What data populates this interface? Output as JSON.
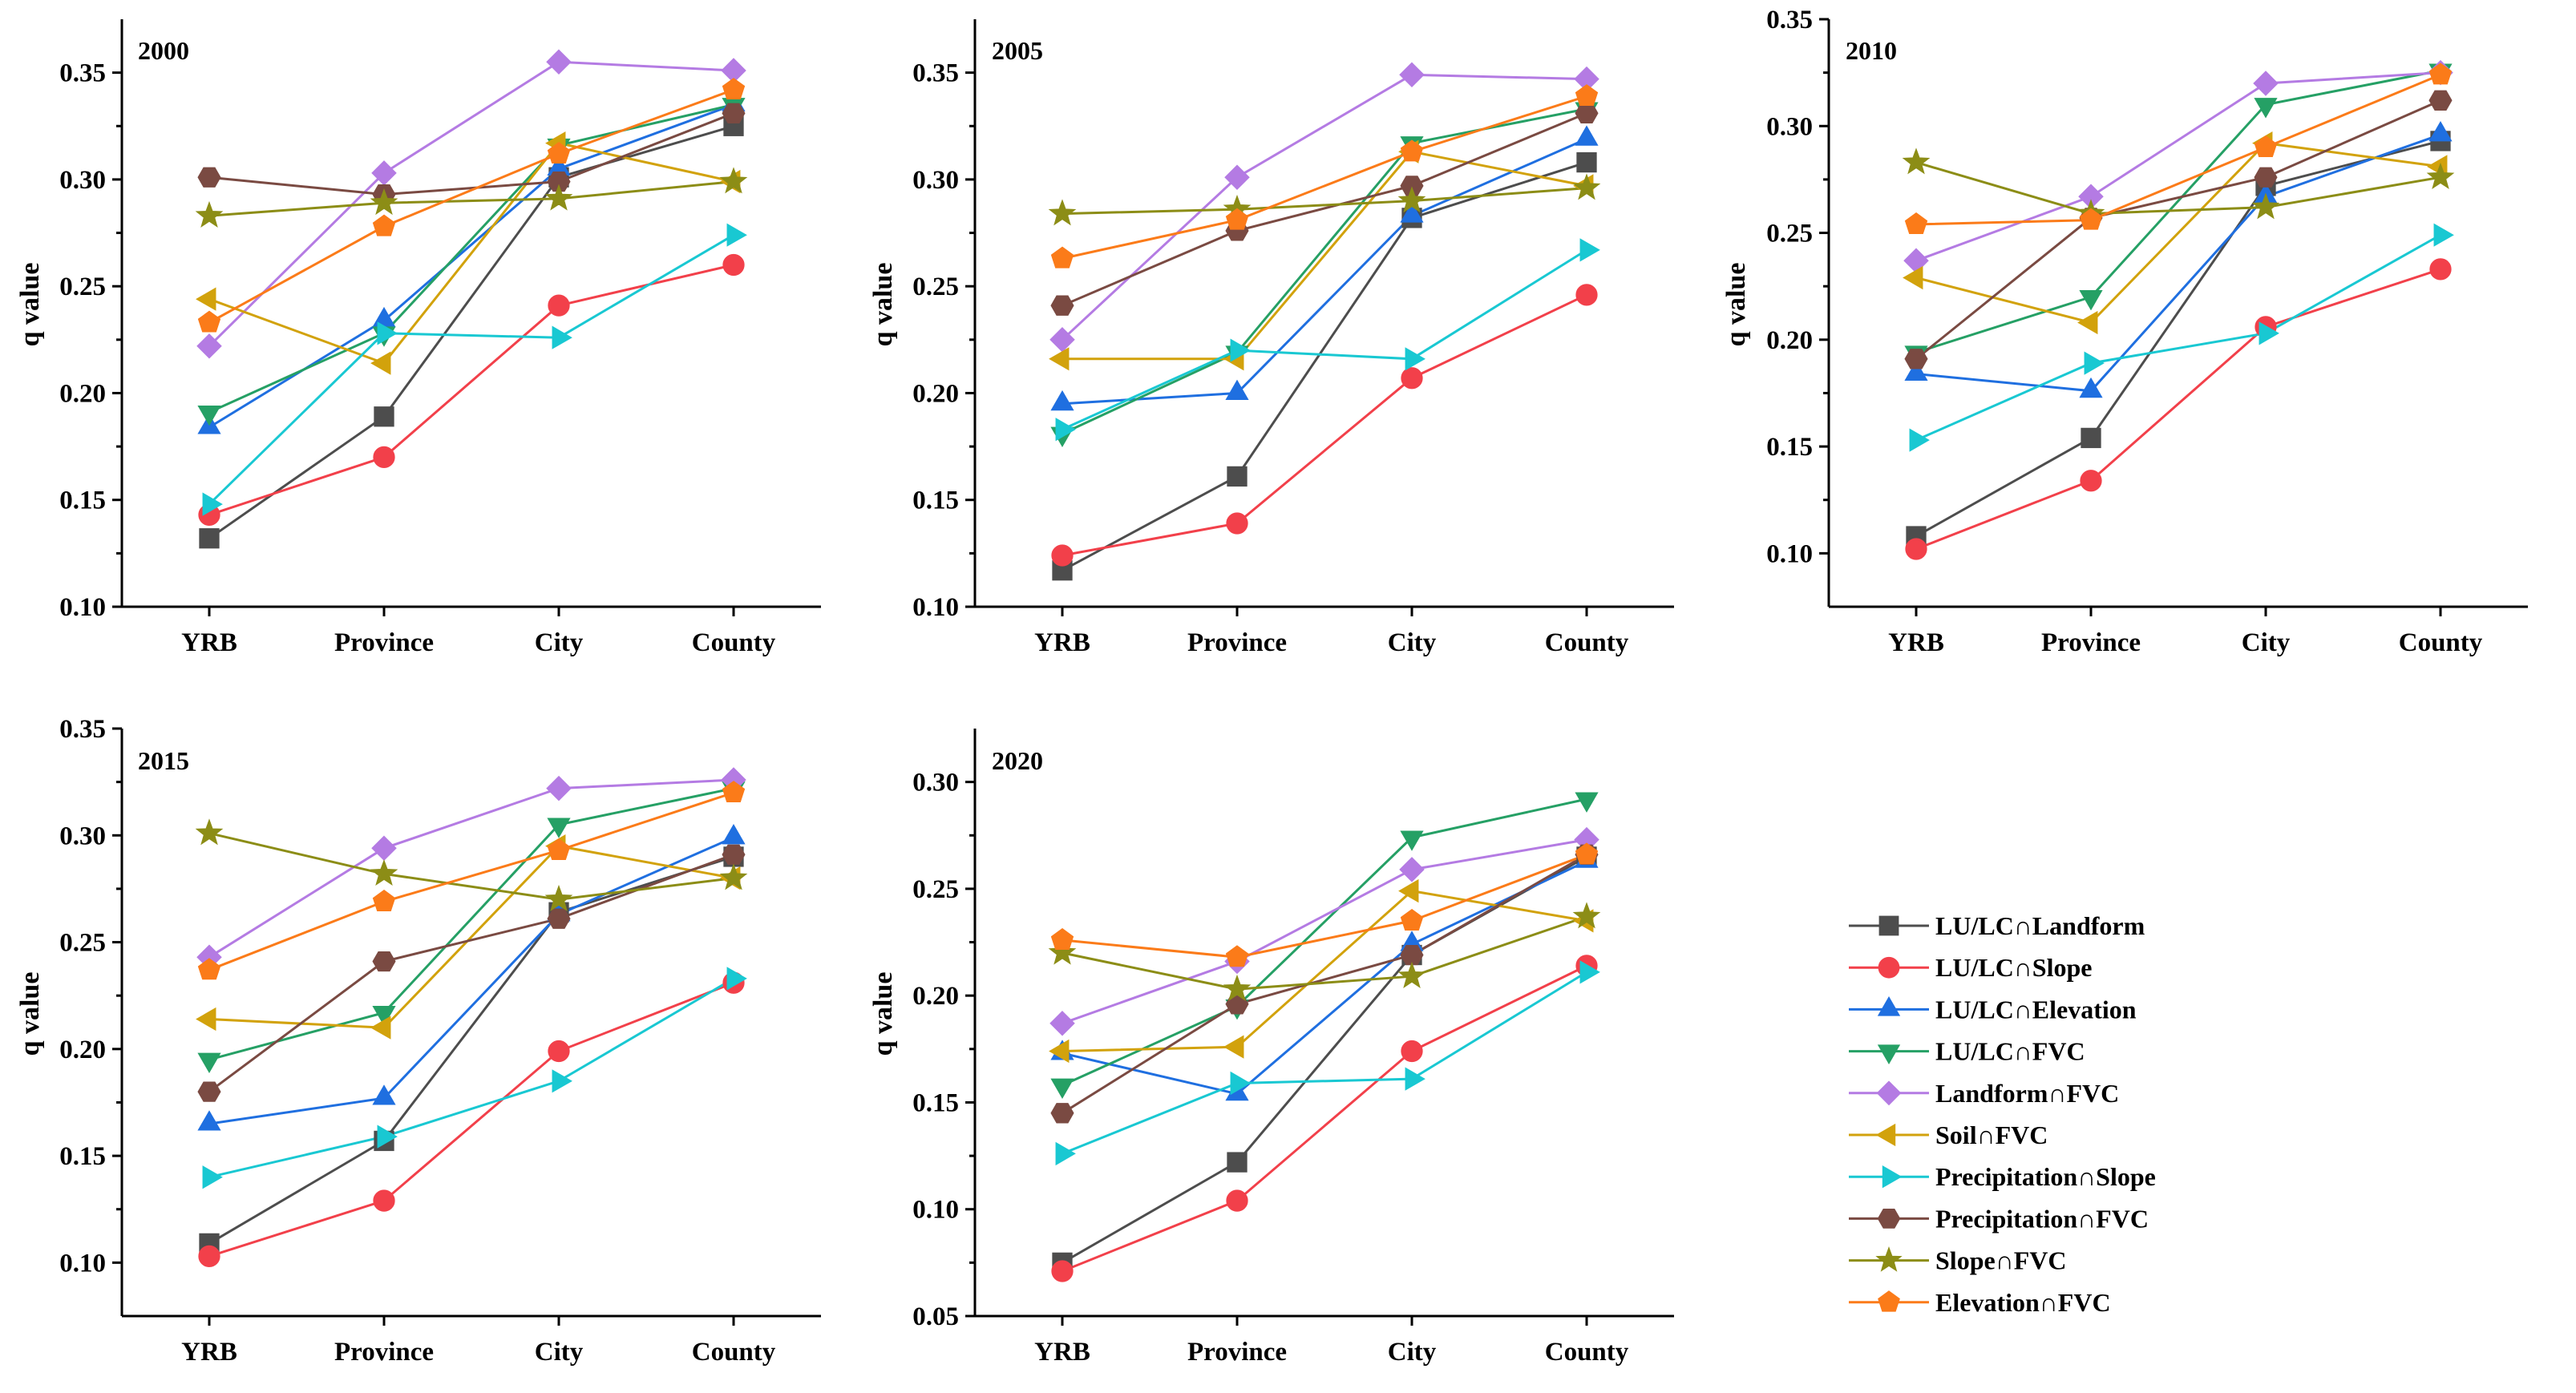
{
  "chart_data": [
    {
      "type": "line",
      "title": "2000",
      "xlabel": "",
      "ylabel": "q value",
      "categories": [
        "YRB",
        "Province",
        "City",
        "County"
      ],
      "ylim": [
        0.1,
        0.375
      ],
      "yticks": [
        "0.10",
        "0.15",
        "0.20",
        "0.25",
        "0.30",
        "0.35"
      ],
      "series": [
        {
          "name": "LU/LC∩Landform",
          "values": [
            0.132,
            0.189,
            0.301,
            0.325
          ]
        },
        {
          "name": "LU/LC∩Slope",
          "values": [
            0.143,
            0.17,
            0.241,
            0.26
          ]
        },
        {
          "name": "LU/LC∩Elevation",
          "values": [
            0.184,
            0.234,
            0.305,
            0.335
          ]
        },
        {
          "name": "LU/LC∩FVC",
          "values": [
            0.191,
            0.228,
            0.316,
            0.335
          ]
        },
        {
          "name": "Landform∩FVC",
          "values": [
            0.222,
            0.303,
            0.355,
            0.351
          ]
        },
        {
          "name": "Soil∩FVC",
          "values": [
            0.244,
            0.214,
            0.317,
            0.299
          ]
        },
        {
          "name": "Precipitation∩Slope",
          "values": [
            0.148,
            0.228,
            0.226,
            0.274
          ]
        },
        {
          "name": "Precipitation∩FVC",
          "values": [
            0.301,
            0.293,
            0.299,
            0.331
          ]
        },
        {
          "name": "Slope∩FVC",
          "values": [
            0.283,
            0.289,
            0.291,
            0.299
          ]
        },
        {
          "name": "Elevation∩FVC",
          "values": [
            0.233,
            0.278,
            0.312,
            0.342
          ]
        }
      ]
    },
    {
      "type": "line",
      "title": "2005",
      "xlabel": "",
      "ylabel": "q value",
      "categories": [
        "YRB",
        "Province",
        "City",
        "County"
      ],
      "ylim": [
        0.1,
        0.375
      ],
      "yticks": [
        "0.10",
        "0.15",
        "0.20",
        "0.25",
        "0.30",
        "0.35"
      ],
      "series": [
        {
          "name": "LU/LC∩Landform",
          "values": [
            0.117,
            0.161,
            0.282,
            0.308
          ]
        },
        {
          "name": "LU/LC∩Slope",
          "values": [
            0.124,
            0.139,
            0.207,
            0.246
          ]
        },
        {
          "name": "LU/LC∩Elevation",
          "values": [
            0.195,
            0.2,
            0.283,
            0.319
          ]
        },
        {
          "name": "LU/LC∩FVC",
          "values": [
            0.181,
            0.219,
            0.317,
            0.333
          ]
        },
        {
          "name": "Landform∩FVC",
          "values": [
            0.225,
            0.301,
            0.349,
            0.347
          ]
        },
        {
          "name": "Soil∩FVC",
          "values": [
            0.216,
            0.216,
            0.313,
            0.297
          ]
        },
        {
          "name": "Precipitation∩Slope",
          "values": [
            0.183,
            0.22,
            0.216,
            0.267
          ]
        },
        {
          "name": "Precipitation∩FVC",
          "values": [
            0.241,
            0.276,
            0.297,
            0.331
          ]
        },
        {
          "name": "Slope∩FVC",
          "values": [
            0.284,
            0.286,
            0.29,
            0.296
          ]
        },
        {
          "name": "Elevation∩FVC",
          "values": [
            0.263,
            0.281,
            0.313,
            0.339
          ]
        }
      ]
    },
    {
      "type": "line",
      "title": "2010",
      "xlabel": "",
      "ylabel": "q value",
      "categories": [
        "YRB",
        "Province",
        "City",
        "County"
      ],
      "ylim": [
        0.075,
        0.35
      ],
      "yticks": [
        "0.10",
        "0.15",
        "0.20",
        "0.25",
        "0.30",
        "0.35"
      ],
      "series": [
        {
          "name": "LU/LC∩Landform",
          "values": [
            0.108,
            0.154,
            0.272,
            0.293
          ]
        },
        {
          "name": "LU/LC∩Slope",
          "values": [
            0.102,
            0.134,
            0.206,
            0.233
          ]
        },
        {
          "name": "LU/LC∩Elevation",
          "values": [
            0.184,
            0.176,
            0.267,
            0.296
          ]
        },
        {
          "name": "LU/LC∩FVC",
          "values": [
            0.194,
            0.22,
            0.31,
            0.326
          ]
        },
        {
          "name": "Landform∩FVC",
          "values": [
            0.237,
            0.267,
            0.32,
            0.325
          ]
        },
        {
          "name": "Soil∩FVC",
          "values": [
            0.229,
            0.208,
            0.292,
            0.281
          ]
        },
        {
          "name": "Precipitation∩Slope",
          "values": [
            0.153,
            0.189,
            0.203,
            0.249
          ]
        },
        {
          "name": "Precipitation∩FVC",
          "values": [
            0.191,
            0.257,
            0.276,
            0.312
          ]
        },
        {
          "name": "Slope∩FVC",
          "values": [
            0.283,
            0.259,
            0.262,
            0.276
          ]
        },
        {
          "name": "Elevation∩FVC",
          "values": [
            0.254,
            0.256,
            0.29,
            0.324
          ]
        }
      ]
    },
    {
      "type": "line",
      "title": "2015",
      "xlabel": "",
      "ylabel": "q value",
      "categories": [
        "YRB",
        "Province",
        "City",
        "County"
      ],
      "ylim": [
        0.075,
        0.35
      ],
      "yticks": [
        "0.10",
        "0.15",
        "0.20",
        "0.25",
        "0.30",
        "0.35"
      ],
      "series": [
        {
          "name": "LU/LC∩Landform",
          "values": [
            0.109,
            0.157,
            0.264,
            0.29
          ]
        },
        {
          "name": "LU/LC∩Slope",
          "values": [
            0.103,
            0.129,
            0.199,
            0.231
          ]
        },
        {
          "name": "LU/LC∩Elevation",
          "values": [
            0.165,
            0.177,
            0.263,
            0.299
          ]
        },
        {
          "name": "LU/LC∩FVC",
          "values": [
            0.195,
            0.217,
            0.305,
            0.322
          ]
        },
        {
          "name": "Landform∩FVC",
          "values": [
            0.243,
            0.294,
            0.322,
            0.326
          ]
        },
        {
          "name": "Soil∩FVC",
          "values": [
            0.214,
            0.21,
            0.295,
            0.28
          ]
        },
        {
          "name": "Precipitation∩Slope",
          "values": [
            0.14,
            0.159,
            0.185,
            0.233
          ]
        },
        {
          "name": "Precipitation∩FVC",
          "values": [
            0.18,
            0.241,
            0.261,
            0.291
          ]
        },
        {
          "name": "Slope∩FVC",
          "values": [
            0.301,
            0.282,
            0.27,
            0.28
          ]
        },
        {
          "name": "Elevation∩FVC",
          "values": [
            0.237,
            0.269,
            0.293,
            0.32
          ]
        }
      ]
    },
    {
      "type": "line",
      "title": "2020",
      "xlabel": "",
      "ylabel": "q value",
      "categories": [
        "YRB",
        "Province",
        "City",
        "County"
      ],
      "ylim": [
        0.05,
        0.325
      ],
      "yticks": [
        "0.05",
        "0.10",
        "0.15",
        "0.20",
        "0.25",
        "0.30"
      ],
      "series": [
        {
          "name": "LU/LC∩Landform",
          "values": [
            0.075,
            0.122,
            0.219,
            0.265
          ]
        },
        {
          "name": "LU/LC∩Slope",
          "values": [
            0.071,
            0.104,
            0.174,
            0.214
          ]
        },
        {
          "name": "LU/LC∩Elevation",
          "values": [
            0.173,
            0.154,
            0.224,
            0.263
          ]
        },
        {
          "name": "LU/LC∩FVC",
          "values": [
            0.158,
            0.195,
            0.274,
            0.292
          ]
        },
        {
          "name": "Landform∩FVC",
          "values": [
            0.187,
            0.216,
            0.259,
            0.273
          ]
        },
        {
          "name": "Soil∩FVC",
          "values": [
            0.174,
            0.176,
            0.249,
            0.235
          ]
        },
        {
          "name": "Precipitation∩Slope",
          "values": [
            0.126,
            0.159,
            0.161,
            0.211
          ]
        },
        {
          "name": "Precipitation∩FVC",
          "values": [
            0.145,
            0.196,
            0.219,
            0.266
          ]
        },
        {
          "name": "Slope∩FVC",
          "values": [
            0.22,
            0.203,
            0.209,
            0.237
          ]
        },
        {
          "name": "Elevation∩FVC",
          "values": [
            0.226,
            0.218,
            0.235,
            0.266
          ]
        }
      ]
    }
  ],
  "legend": {
    "items": [
      {
        "label": "LU/LC∩Landform",
        "color": "#4d4d4d",
        "marker": "square"
      },
      {
        "label": "LU/LC∩Slope",
        "color": "#f2404a",
        "marker": "circle"
      },
      {
        "label": "LU/LC∩Elevation",
        "color": "#1f6fe0",
        "marker": "triangle-up"
      },
      {
        "label": "LU/LC∩FVC",
        "color": "#25a065",
        "marker": "triangle-down"
      },
      {
        "label": "Landform∩FVC",
        "color": "#b47be3",
        "marker": "diamond"
      },
      {
        "label": "Soil∩FVC",
        "color": "#d2a20c",
        "marker": "triangle-left"
      },
      {
        "label": "Precipitation∩Slope",
        "color": "#19c8d2",
        "marker": "triangle-right"
      },
      {
        "label": "Precipitation∩FVC",
        "color": "#7a4a42",
        "marker": "hexagon"
      },
      {
        "label": "Slope∩FVC",
        "color": "#8c8d16",
        "marker": "star"
      },
      {
        "label": "Elevation∩FVC",
        "color": "#fb7b19",
        "marker": "pentagon"
      }
    ]
  }
}
